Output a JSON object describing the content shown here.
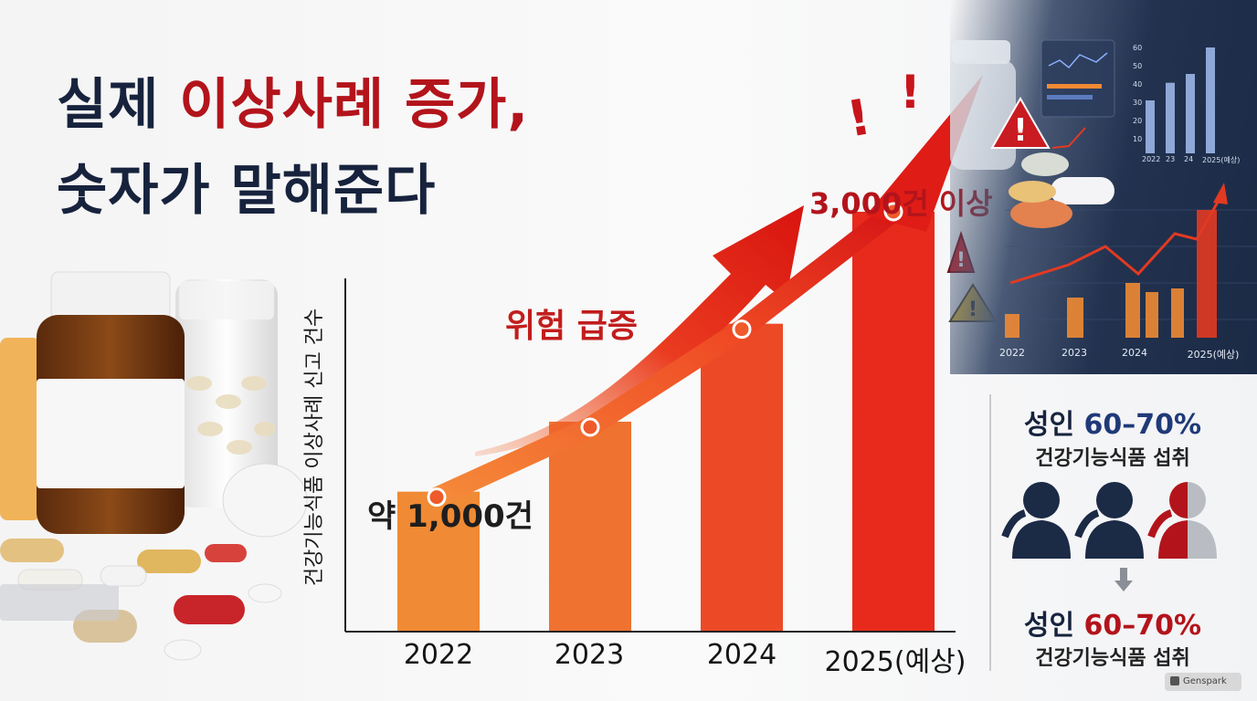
{
  "headline": {
    "line1_part1": "실제",
    "line1_part2": "이상사례 증가,",
    "line2": "숫자가 말해준다"
  },
  "chart_data": [
    {
      "type": "bar",
      "categories": [
        "2022",
        "2023",
        "2024",
        "2025(예상)"
      ],
      "values": [
        1000,
        1500,
        2200,
        3000
      ],
      "ylabel": "건강기능식품 이상사례 신고 건수",
      "annotations": [
        "약 1,000건",
        "3,000건 이상",
        "위험 급증"
      ],
      "trend_line": true,
      "colors": [
        "#f08a34",
        "#ef7230",
        "#ec4a26",
        "#e82a1c"
      ]
    },
    {
      "type": "bar",
      "categories": [
        "2022",
        "2023",
        "2024",
        "2025(예상)"
      ],
      "yticks": [
        "60",
        "50",
        "40",
        "30",
        "20",
        "10"
      ],
      "ylim": [
        0,
        60
      ],
      "values": [
        30,
        40,
        45,
        60
      ],
      "top_xlabels": [
        "2022",
        "23",
        "24",
        "2025(예상)"
      ]
    }
  ],
  "panel": {
    "top_label": "성인",
    "top_pct": "60–70%",
    "top_sub": "건강기능식품 섭취",
    "bottom_label": "성인",
    "bottom_pct": "60–70%",
    "bottom_sub": "건강기능식품 섭취",
    "arrow": "↓"
  },
  "watermark": "Genspark",
  "colors": {
    "navy": "#17233d",
    "red": "#b3141b",
    "orange": "#f08a34"
  }
}
